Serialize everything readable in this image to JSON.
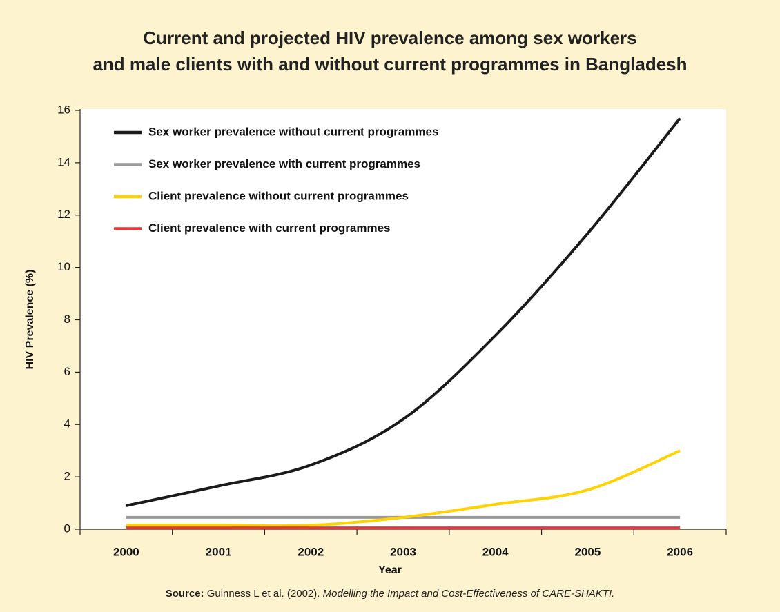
{
  "chart_data": {
    "type": "line",
    "title": [
      "Current and projected HIV prevalence among sex workers",
      "and male clients with and without current programmes in Bangladesh"
    ],
    "xlabel": "Year",
    "ylabel": "HIV Prevalence (%)",
    "categories": [
      "2000",
      "2001",
      "2002",
      "2003",
      "2004",
      "2005",
      "2006"
    ],
    "series": [
      {
        "name": "Sex worker prevalence without current programmes",
        "color": "#1a1a1a",
        "values": [
          0.9,
          1.65,
          2.45,
          4.2,
          7.4,
          11.3,
          15.7
        ]
      },
      {
        "name": "Sex worker prevalence with current programmes",
        "color": "#9a9a9a",
        "values": [
          0.45,
          0.45,
          0.45,
          0.45,
          0.45,
          0.45,
          0.45
        ]
      },
      {
        "name": "Client prevalence without current programmes",
        "color": "#ffd200",
        "values": [
          0.15,
          0.15,
          0.15,
          0.45,
          0.95,
          1.5,
          3.0
        ]
      },
      {
        "name": "Client prevalence with current programmes",
        "color": "#e0393e",
        "values": [
          0.05,
          0.05,
          0.05,
          0.05,
          0.05,
          0.05,
          0.05
        ]
      }
    ],
    "ylim": [
      0,
      16
    ],
    "yticks": [
      0,
      2,
      4,
      6,
      8,
      10,
      12,
      14,
      16
    ],
    "legend": "upper left",
    "source_label": "Source:",
    "source_text": "Guinness L et al. (2002).",
    "source_title": "Modelling the Impact and Cost-Effectiveness of CARE-SHAKTI."
  }
}
